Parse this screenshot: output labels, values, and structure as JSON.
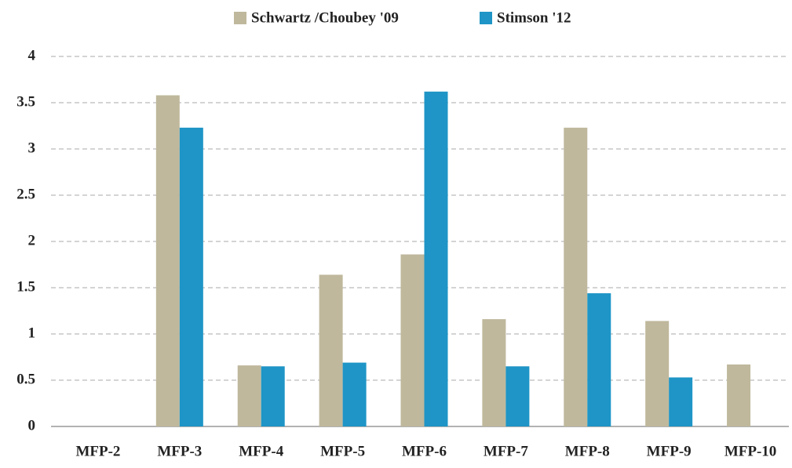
{
  "chart_data": {
    "type": "bar",
    "categories": [
      "MFP-2",
      "MFP-3",
      "MFP-4",
      "MFP-5",
      "MFP-6",
      "MFP-7",
      "MFP-8",
      "MFP-9",
      "MFP-10"
    ],
    "series": [
      {
        "name": "Schwartz /Choubey '09",
        "color": "#bfb89c",
        "values": [
          null,
          3.58,
          0.66,
          1.64,
          1.86,
          1.16,
          3.23,
          1.14,
          0.67
        ]
      },
      {
        "name": "Stimson '12",
        "color": "#1e95c6",
        "values": [
          null,
          3.23,
          0.65,
          0.69,
          3.62,
          0.65,
          1.44,
          0.53,
          null
        ]
      }
    ],
    "ylim": [
      0,
      4
    ],
    "yticks": [
      0,
      0.5,
      1,
      1.5,
      2,
      2.5,
      3,
      3.5,
      4
    ],
    "grid": true,
    "legend": "top"
  }
}
